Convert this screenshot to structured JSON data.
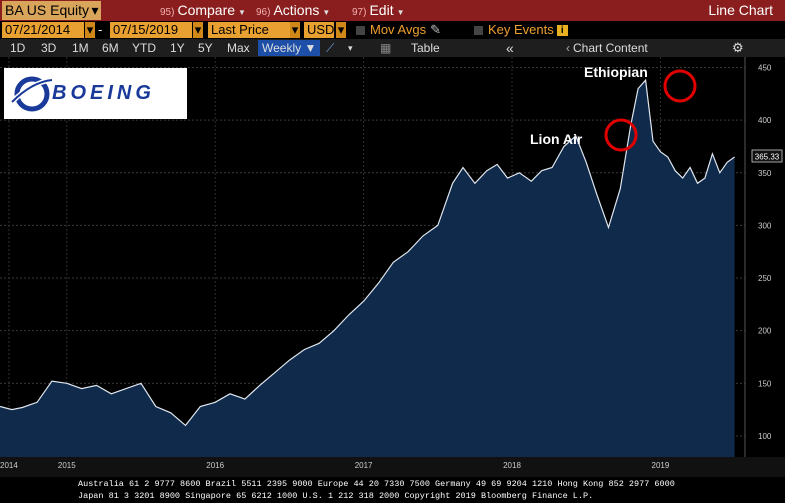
{
  "toolbar": {
    "ticker": "BA US Equity",
    "compare": {
      "num": "95)",
      "label": "Compare"
    },
    "actions": {
      "num": "96)",
      "label": "Actions"
    },
    "edit": {
      "num": "97)",
      "label": "Edit"
    },
    "chart_type": "Line Chart"
  },
  "controls": {
    "start_date": "07/21/2014",
    "date_separator": "-",
    "end_date": "07/15/2019",
    "price_field": "Last Price",
    "currency": "USD",
    "mov_avgs": "Mov Avgs",
    "key_events": "Key Events"
  },
  "periods": {
    "items": [
      "1D",
      "3D",
      "1M",
      "6M",
      "YTD",
      "1Y",
      "5Y",
      "Max"
    ],
    "frequency": "Weekly",
    "table": "Table",
    "chart_content": "Chart Content"
  },
  "logo": {
    "text": "BOEING"
  },
  "annotations": {
    "lion_air": "Lion Air",
    "ethiopian": "Ethiopian"
  },
  "last_price_label": "365.33",
  "footer": {
    "line1": "Australia 61 2 9777 8600 Brazil 5511 2395 9000 Europe 44 20 7330 7500 Germany 49 69 9204 1210 Hong Kong 852 2977 6000",
    "line2": "Japan 81 3 3201 8900         Singapore 65 6212 1000         U.S. 1 212 318 2000         Copyright 2019 Bloomberg Finance L.P."
  },
  "colors": {
    "line": "#dfe6ee",
    "fill": "#0f2a4a",
    "accent": "#e00000"
  },
  "chart_data": {
    "type": "area",
    "title": "",
    "xlabel": "",
    "ylabel": "",
    "ylim": [
      80,
      460
    ],
    "yticks": [
      100,
      150,
      200,
      250,
      300,
      350,
      400,
      450
    ],
    "xticks": [
      {
        "label": "2014",
        "t": 0.06
      },
      {
        "label": "2015",
        "t": 0.45
      },
      {
        "label": "2016",
        "t": 1.45
      },
      {
        "label": "2017",
        "t": 2.45
      },
      {
        "label": "2018",
        "t": 3.45
      },
      {
        "label": "2019",
        "t": 4.45
      }
    ],
    "x": [
      0,
      0.08,
      0.15,
      0.25,
      0.35,
      0.45,
      0.55,
      0.65,
      0.75,
      0.85,
      0.95,
      1.05,
      1.15,
      1.25,
      1.35,
      1.45,
      1.55,
      1.65,
      1.75,
      1.85,
      1.95,
      2.05,
      2.15,
      2.25,
      2.35,
      2.45,
      2.55,
      2.65,
      2.75,
      2.85,
      2.95,
      3.05,
      3.12,
      3.2,
      3.28,
      3.35,
      3.42,
      3.5,
      3.58,
      3.65,
      3.72,
      3.8,
      3.88,
      3.95,
      4.02,
      4.1,
      4.18,
      4.25,
      4.3,
      4.35,
      4.4,
      4.45,
      4.5,
      4.55,
      4.6,
      4.65,
      4.7,
      4.75,
      4.8,
      4.85,
      4.9,
      4.95
    ],
    "y": [
      128,
      125,
      127,
      132,
      152,
      150,
      145,
      148,
      140,
      145,
      150,
      128,
      122,
      110,
      128,
      132,
      140,
      135,
      148,
      160,
      172,
      182,
      188,
      200,
      215,
      228,
      245,
      265,
      275,
      290,
      300,
      340,
      355,
      340,
      352,
      358,
      345,
      350,
      342,
      352,
      355,
      375,
      385,
      360,
      330,
      298,
      335,
      395,
      430,
      438,
      380,
      370,
      365,
      352,
      345,
      355,
      340,
      345,
      368,
      350,
      360,
      365
    ]
  }
}
